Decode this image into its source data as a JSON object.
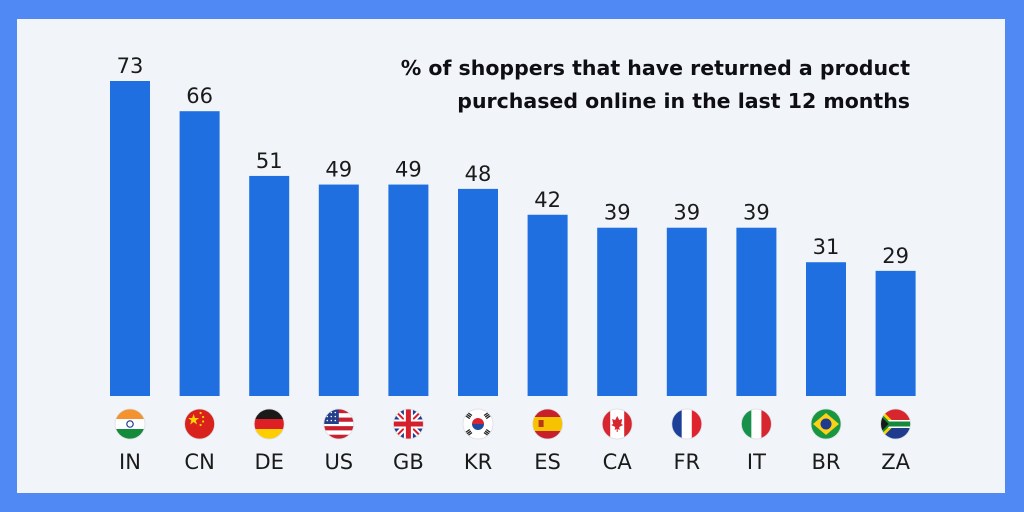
{
  "chart_data": {
    "type": "bar",
    "title": "% of shoppers that have returned a product purchased online in the last 12 months",
    "title_lines": [
      "% of shoppers that have returned a product",
      "purchased online in the last 12 months"
    ],
    "categories": [
      "IN",
      "CN",
      "DE",
      "US",
      "GB",
      "KR",
      "ES",
      "CA",
      "FR",
      "IT",
      "BR",
      "ZA"
    ],
    "values": [
      73,
      66,
      51,
      49,
      49,
      48,
      42,
      39,
      39,
      39,
      31,
      29
    ],
    "flags": [
      "flag-india-icon",
      "flag-china-icon",
      "flag-germany-icon",
      "flag-usa-icon",
      "flag-uk-icon",
      "flag-south-korea-icon",
      "flag-spain-icon",
      "flag-canada-icon",
      "flag-france-icon",
      "flag-italy-icon",
      "flag-brazil-icon",
      "flag-south-africa-icon"
    ],
    "ylim": [
      0,
      73
    ],
    "grid": false,
    "colors": {
      "bar": "#1f6fe0",
      "background": "#f1f5f9",
      "frame": "#5089f4"
    }
  }
}
